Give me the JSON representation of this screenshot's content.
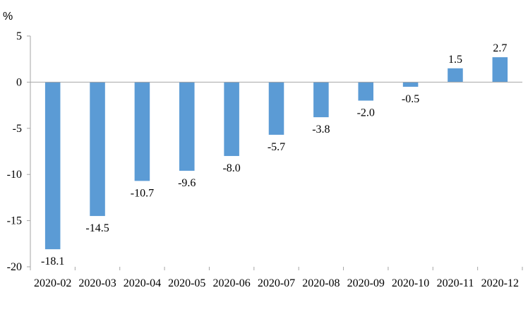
{
  "chart_data": {
    "type": "bar",
    "unit": "%",
    "categories": [
      "2020-02",
      "2020-03",
      "2020-04",
      "2020-05",
      "2020-06",
      "2020-07",
      "2020-08",
      "2020-09",
      "2020-10",
      "2020-11",
      "2020-12"
    ],
    "values": [
      -18.1,
      -14.5,
      -10.7,
      -9.6,
      -8.0,
      -5.7,
      -3.8,
      -2.0,
      -0.5,
      1.5,
      2.7
    ],
    "value_labels": [
      "-18.1",
      "-14.5",
      "-10.7",
      "-9.6",
      "-8.0",
      "-5.7",
      "-3.8",
      "-2.0",
      "-0.5",
      "1.5",
      "2.7"
    ],
    "y_ticks": [
      5,
      0,
      -5,
      -10,
      -15,
      -20
    ],
    "ylim": [
      -20,
      5
    ],
    "bar_color": "#5b9bd5",
    "grid": false,
    "legend": "none"
  }
}
